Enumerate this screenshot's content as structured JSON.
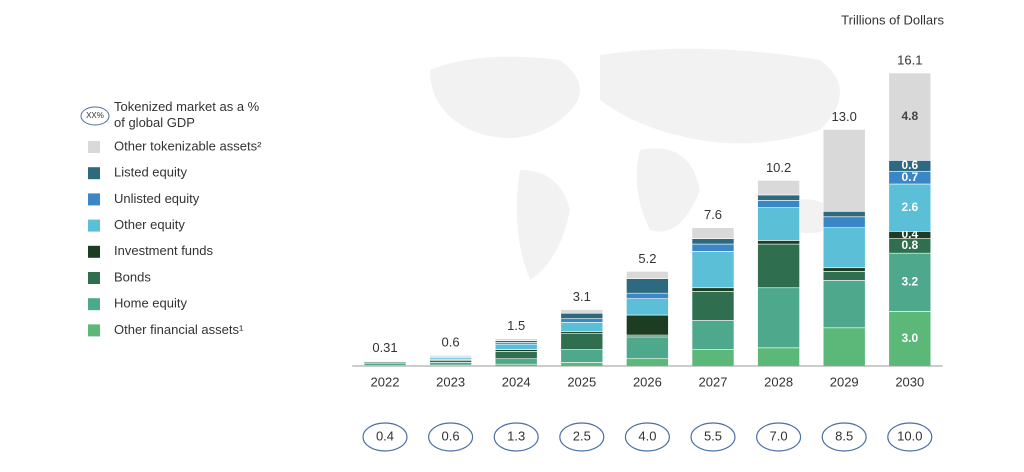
{
  "chart_data": {
    "type": "stacked-bar",
    "unit_label": "Trillions of Dollars",
    "categories": [
      "2022",
      "2023",
      "2024",
      "2025",
      "2026",
      "2027",
      "2028",
      "2029",
      "2030"
    ],
    "series": [
      {
        "name": "Other financial assets¹",
        "color": "#5cb878",
        "values": [
          0.03,
          0.05,
          0.1,
          0.2,
          0.4,
          0.9,
          1.0,
          2.1,
          3.0
        ],
        "value_labels": [
          null,
          null,
          null,
          null,
          null,
          null,
          null,
          null,
          "3.0"
        ]
      },
      {
        "name": "Home equity",
        "color": "#4da88c",
        "values": [
          0.1,
          0.15,
          0.3,
          0.7,
          1.2,
          1.6,
          3.3,
          2.6,
          3.2
        ],
        "value_labels": [
          null,
          null,
          null,
          null,
          null,
          null,
          null,
          null,
          "3.2"
        ]
      },
      {
        "name": "Bonds",
        "color": "#2f6f4f",
        "values": [
          0.08,
          0.1,
          0.4,
          0.9,
          0.1,
          1.6,
          2.4,
          0.5,
          0.8
        ],
        "value_labels": [
          null,
          null,
          null,
          null,
          null,
          null,
          null,
          null,
          "0.8"
        ]
      },
      {
        "name": "Investment funds",
        "color": "#1d3d23",
        "values": [
          0.02,
          0.05,
          0.1,
          0.1,
          1.1,
          0.2,
          0.2,
          0.2,
          0.4
        ],
        "value_labels": [
          null,
          null,
          null,
          null,
          null,
          null,
          null,
          null,
          "0.4"
        ]
      },
      {
        "name": "Other equity",
        "color": "#5bbfd8",
        "values": [
          0.04,
          0.1,
          0.3,
          0.5,
          0.9,
          2.0,
          1.8,
          2.2,
          2.6
        ],
        "value_labels": [
          null,
          null,
          null,
          null,
          null,
          null,
          null,
          null,
          "2.6"
        ]
      },
      {
        "name": "Unlisted equity",
        "color": "#3a86c6",
        "values": [
          0.02,
          0.05,
          0.1,
          0.2,
          0.3,
          0.4,
          0.4,
          0.6,
          0.7
        ],
        "value_labels": [
          null,
          null,
          null,
          null,
          null,
          null,
          null,
          null,
          "0.7"
        ]
      },
      {
        "name": "Listed equity",
        "color": "#2d6a80",
        "values": [
          0.01,
          0.05,
          0.1,
          0.3,
          0.8,
          0.3,
          0.3,
          0.3,
          0.6
        ],
        "value_labels": [
          null,
          null,
          null,
          null,
          null,
          null,
          null,
          null,
          "0.6"
        ]
      },
      {
        "name": "Other tokenizable assets²",
        "color": "#d9d9d9",
        "values": [
          0.01,
          0.05,
          0.1,
          0.2,
          0.4,
          0.6,
          0.8,
          4.5,
          4.8
        ],
        "value_labels": [
          null,
          null,
          null,
          null,
          null,
          null,
          null,
          null,
          "4.8"
        ]
      }
    ],
    "totals": {
      "values": [
        0.31,
        0.6,
        1.5,
        3.1,
        5.2,
        7.6,
        10.2,
        13.0,
        16.1
      ],
      "value_labels": [
        "0.31",
        "0.6",
        "1.5",
        "3.1",
        "5.2",
        "7.6",
        "10.2",
        "13.0",
        "16.1"
      ]
    },
    "gdp_share": {
      "legend_icon": "XX%",
      "legend_label": "Tokenized market as a % of global GDP",
      "values": [
        0.4,
        0.6,
        1.3,
        2.5,
        4.0,
        5.5,
        7.0,
        8.5,
        10.0
      ],
      "value_labels": [
        "0.4",
        "0.6",
        "1.3",
        "2.5",
        "4.0",
        "5.5",
        "7.0",
        "8.5",
        "10.0"
      ]
    }
  }
}
